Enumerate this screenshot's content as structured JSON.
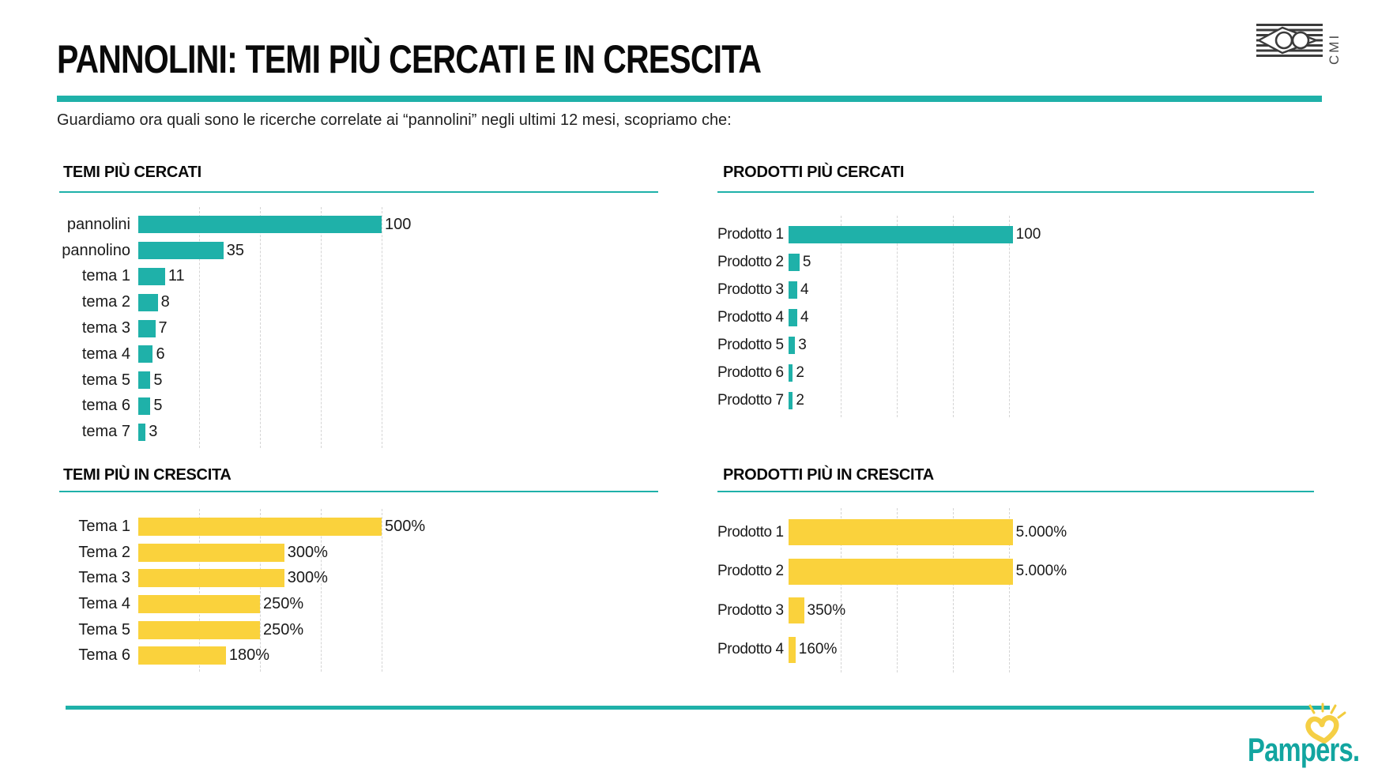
{
  "header": {
    "title": "PANNOLINI: TEMI PIÙ CERCATI E IN CRESCITA",
    "subtitle": "Guardiamo ora quali sono le ricerche correlate ai “pannolini” negli ultimi 12 mesi, scopriamo che:"
  },
  "branding": {
    "cmi": "CMI",
    "pampers": "Pampers."
  },
  "colors": {
    "teal": "#1FB1A9",
    "yellow": "#FAD23C",
    "pampers_teal": "#12A5A0",
    "heart_yellow": "#F5CF45",
    "logo_gray": "#3B3B3B",
    "gridline": "#D4D4D4"
  },
  "chart_data": [
    {
      "type": "bar",
      "orientation": "horizontal",
      "title": "TEMI PIÙ CERCATI",
      "categories": [
        "pannolini",
        "pannolino",
        "tema 1",
        "tema 2",
        "tema 3",
        "tema 4",
        "tema 5",
        "tema 6",
        "tema 7"
      ],
      "values": [
        100,
        35,
        11,
        8,
        7,
        6,
        5,
        5,
        3
      ],
      "value_labels": [
        "100",
        "35",
        "11",
        "8",
        "7",
        "6",
        "5",
        "5",
        "3"
      ],
      "xlim": [
        0,
        100
      ],
      "grid_ticks_implied": [
        25,
        50,
        75,
        100
      ],
      "grid": "dashed-vertical",
      "legend": "none",
      "bar_color": "#1FB1A9"
    },
    {
      "type": "bar",
      "orientation": "horizontal",
      "title": "PRODOTTI PIÙ CERCATI",
      "categories": [
        "Prodotto 1",
        "Prodotto 2",
        "Prodotto 3",
        "Prodotto 4",
        "Prodotto 5",
        "Prodotto 6",
        "Prodotto 7"
      ],
      "values": [
        100,
        5,
        4,
        4,
        3,
        2,
        2
      ],
      "value_labels": [
        "100",
        "5",
        "4",
        "4",
        "3",
        "2",
        "2"
      ],
      "xlim": [
        0,
        100
      ],
      "grid_ticks_implied": [
        25,
        50,
        75,
        100
      ],
      "grid": "dashed-vertical",
      "legend": "none",
      "bar_color": "#1FB1A9"
    },
    {
      "type": "bar",
      "orientation": "horizontal",
      "title": "TEMI PIÙ IN CRESCITA",
      "categories": [
        "Tema 1",
        "Tema 2",
        "Tema 3",
        "Tema 4",
        "Tema 5",
        "Tema 6"
      ],
      "values": [
        500,
        300,
        300,
        250,
        250,
        180
      ],
      "value_labels": [
        "500%",
        "300%",
        "300%",
        "250%",
        "250%",
        "180%"
      ],
      "xlim": [
        0,
        500
      ],
      "grid_ticks_implied": [
        125,
        250,
        375,
        500
      ],
      "grid": "dashed-vertical",
      "legend": "none",
      "bar_color": "#FAD23C"
    },
    {
      "type": "bar",
      "orientation": "horizontal",
      "title": "PRODOTTI PIÙ IN CRESCITA",
      "categories": [
        "Prodotto 1",
        "Prodotto 2",
        "Prodotto 3",
        "Prodotto 4"
      ],
      "values": [
        5000,
        5000,
        350,
        160
      ],
      "value_labels": [
        "5.000%",
        "5.000%",
        "350%",
        "160%"
      ],
      "xlim": [
        0,
        5000
      ],
      "grid_ticks_implied": [
        1250,
        2500,
        3750,
        5000
      ],
      "grid": "dashed-vertical",
      "legend": "none",
      "bar_color": "#FAD23C"
    }
  ]
}
